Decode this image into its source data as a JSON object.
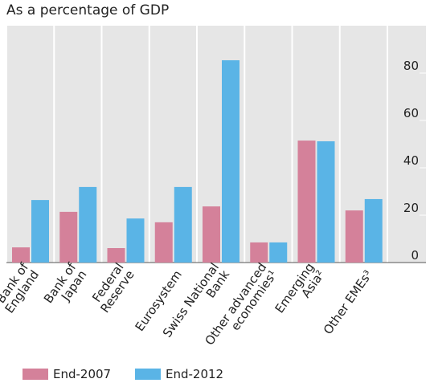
{
  "chart_data": {
    "type": "bar",
    "title": "As a percentage of GDP",
    "categories": [
      [
        "Bank of",
        "England"
      ],
      [
        "Bank of",
        "Japan"
      ],
      [
        "Federal",
        "Reserve"
      ],
      [
        "Eurosystem"
      ],
      [
        "Swiss National",
        "Bank"
      ],
      [
        "Other advanced",
        "economies¹"
      ],
      [
        "Emerging",
        "Asia²"
      ],
      [
        "Other EMEs³"
      ]
    ],
    "series": [
      {
        "name": "End-2007",
        "color": "#d4819a",
        "values": [
          6.4,
          21.4,
          6.1,
          17,
          23.7,
          8.5,
          51.5,
          22
        ]
      },
      {
        "name": "End-2012",
        "color": "#5ab4e6",
        "values": [
          26.4,
          31.9,
          18.6,
          31.9,
          85.4,
          8.5,
          51.2,
          26.8
        ]
      }
    ],
    "ylim": [
      0,
      100
    ],
    "yticks": [
      0,
      20,
      40,
      60,
      80
    ],
    "grid": true
  }
}
